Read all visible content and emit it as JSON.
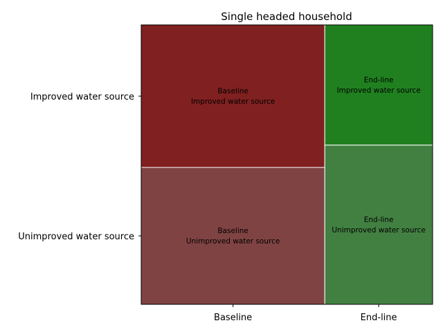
{
  "chart_data": {
    "type": "mosaic",
    "title": "Single headed household",
    "x_categories": [
      "Baseline",
      "End-line"
    ],
    "y_categories": [
      "Unimproved water source",
      "Improved water source"
    ],
    "x_proportions": [
      0.63,
      0.37
    ],
    "cells": [
      {
        "x": "Baseline",
        "y": "Unimproved water source",
        "fraction_within_x": 0.49,
        "label_lines": [
          "Baseline",
          "Unimproved water source"
        ],
        "color": "#804343"
      },
      {
        "x": "Baseline",
        "y": "Improved water source",
        "fraction_within_x": 0.51,
        "label_lines": [
          "Baseline",
          "Improved water source"
        ],
        "color": "#802020"
      },
      {
        "x": "End-line",
        "y": "Unimproved water source",
        "fraction_within_x": 0.57,
        "label_lines": [
          "End-line",
          "Unimproved water source"
        ],
        "color": "#428042"
      },
      {
        "x": "End-line",
        "y": "Improved water source",
        "fraction_within_x": 0.43,
        "label_lines": [
          "End-line",
          "Improved water source"
        ],
        "color": "#208020"
      }
    ]
  }
}
